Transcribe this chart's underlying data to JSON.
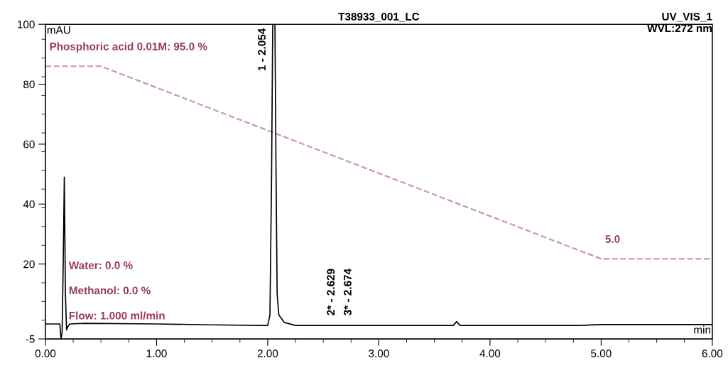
{
  "chart_data": {
    "type": "line",
    "title": "T38933_001_LC",
    "subtitle": "UV_VIS_1\nWVL:272 nm",
    "ylabel": "mAU",
    "xlabel": "min",
    "xlim": [
      0,
      6
    ],
    "xticks": [
      {
        "value": 0,
        "label": "0.00"
      },
      {
        "value": 1,
        "label": "1.00"
      },
      {
        "value": 2,
        "label": "2.00"
      },
      {
        "value": 3,
        "label": "3.00"
      },
      {
        "value": 4,
        "label": "4.00"
      },
      {
        "value": 5,
        "label": "5.00"
      },
      {
        "value": 6,
        "label": "6.00"
      }
    ],
    "ylim": [
      -5,
      100
    ],
    "yticks": [
      -5,
      20,
      40,
      60,
      80,
      100
    ],
    "y2lim": [
      -32.4,
      114.6
    ],
    "grid": false,
    "legend": false,
    "series": [
      {
        "color": "#000000",
        "x": [
          0,
          0.13,
          0.14,
          0.15,
          0.16,
          0.17,
          0.18,
          0.19,
          0.2,
          0.22,
          0.35,
          1.0,
          1.5,
          1.95,
          2.0,
          2.02,
          2.035,
          2.045,
          2.065,
          2.075,
          2.085,
          2.1,
          2.15,
          2.25,
          2.629,
          2.674,
          3.0,
          3.67,
          3.7,
          3.73,
          4.8,
          5.0,
          6.0
        ],
        "values": [
          0,
          0,
          -5,
          -3,
          20,
          49,
          10,
          -2,
          -1,
          0,
          0.2,
          0,
          -0.3,
          -0.5,
          -0.5,
          3,
          50,
          100,
          100,
          50,
          10,
          3,
          0.5,
          -0.5,
          -0.5,
          -0.5,
          -0.5,
          -0.5,
          0.8,
          -0.5,
          -0.5,
          -0.2,
          -0.2
        ]
      },
      {
        "color": "#c79aad",
        "axis": "y2",
        "line_style": "dashed",
        "x": [
          0,
          0.5,
          5.0,
          6.0
        ],
        "values": [
          95,
          95,
          5,
          5
        ],
        "value_labels": [
          "Phosphoric acid 0.01M: 95.0 %",
          null,
          "5.0",
          null
        ]
      }
    ],
    "annotations": [
      "Water: 0.0 %",
      "Methanol: 0.0 %",
      "Flow: 1.000 ml/min",
      {
        "text": "1 - 2.054",
        "x": 2.054,
        "y": 100
      },
      {
        "text": "2* - 2.629",
        "x": 2.629,
        "y": -0.5
      },
      {
        "text": "3* - 2.674",
        "x": 2.674,
        "y": -0.5
      }
    ]
  }
}
